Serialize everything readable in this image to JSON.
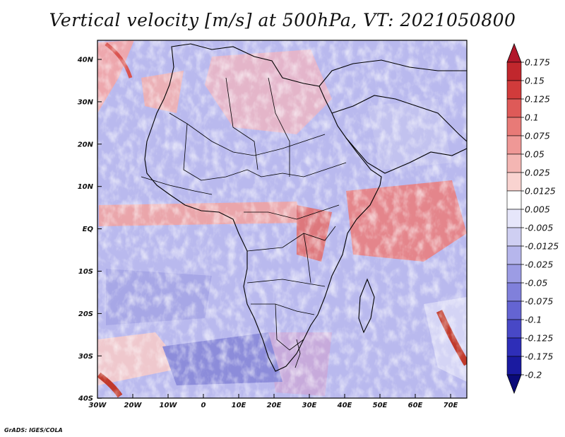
{
  "title": "Vertical velocity [m/s] at 500hPa, VT: 2021050800",
  "credit": "GrADS: IGES/COLA",
  "map": {
    "lat_labels": [
      "40N",
      "30N",
      "20N",
      "10N",
      "EQ",
      "10S",
      "20S",
      "30S",
      "40S"
    ],
    "lon_labels": [
      "30W",
      "20W",
      "10W",
      "0",
      "10E",
      "20E",
      "30E",
      "40E",
      "50E",
      "60E",
      "70E"
    ],
    "extent": {
      "lon_min": -30,
      "lon_max": 75,
      "lat_min": -40,
      "lat_max": 44
    },
    "field": "vertical velocity (omega) at 500 hPa",
    "units": "m/s"
  },
  "colorbar": {
    "levels": [
      "0.175",
      "0.15",
      "0.125",
      "0.1",
      "0.075",
      "0.05",
      "0.025",
      "0.0125",
      "0.005",
      "-0.005",
      "-0.0125",
      "-0.025",
      "-0.05",
      "-0.075",
      "-0.1",
      "-0.125",
      "-0.175",
      "-0.2"
    ],
    "colors": [
      "#b2182b",
      "#c1272d",
      "#d13b3b",
      "#de5a58",
      "#e87a77",
      "#ef9896",
      "#f4b6b3",
      "#f9d3d0",
      "#ffffff",
      "#e6e6fa",
      "#cfcff2",
      "#b6b6ec",
      "#9c9ce4",
      "#8080db",
      "#6464d2",
      "#4848c6",
      "#2e2eb8",
      "#1a1aa0",
      "#0a0a78"
    ]
  }
}
